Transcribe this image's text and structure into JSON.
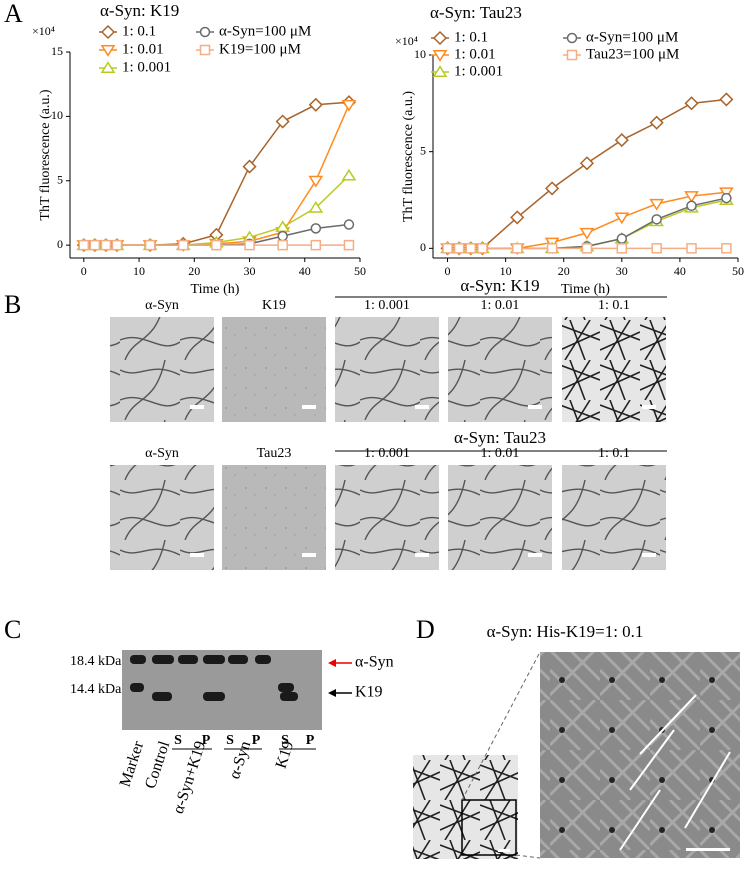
{
  "panel_labels": [
    "A",
    "B",
    "C",
    "D"
  ],
  "chart_data": [
    {
      "type": "line",
      "title": "α-Syn: K19",
      "y_multiplier": "×10⁴",
      "x_label": "Time (h)",
      "y_label": "ThT fluorescence (a.u.)",
      "x": [
        0,
        2,
        4,
        6,
        12,
        18,
        24,
        30,
        36,
        42,
        48
      ],
      "xlim": [
        -2.5,
        50
      ],
      "ylim": [
        -1,
        15
      ],
      "xticks": [
        0,
        10,
        20,
        30,
        40,
        50
      ],
      "yticks": [
        0,
        5,
        10,
        15
      ],
      "series": [
        {
          "name": "1: 0.1",
          "color": "#a8642a",
          "marker": "diamond",
          "values": [
            0,
            0,
            0,
            0,
            0,
            0.1,
            0.8,
            6.1,
            9.6,
            10.9,
            11.1
          ]
        },
        {
          "name": "1: 0.01",
          "color": "#ff8a1f",
          "marker": "triangle-down",
          "values": [
            0,
            0,
            0,
            0,
            0,
            0,
            0.1,
            0.3,
            1.0,
            5.0,
            10.9
          ]
        },
        {
          "name": "1: 0.001",
          "color": "#b9cb22",
          "marker": "triangle-up",
          "values": [
            0,
            0,
            0,
            0,
            0,
            0,
            0.2,
            0.6,
            1.4,
            2.9,
            5.4
          ]
        },
        {
          "name": "α-Syn=100 μM",
          "color": "#6b6b6b",
          "marker": "circle",
          "values": [
            0,
            0,
            0,
            0,
            0,
            0,
            0,
            0.1,
            0.7,
            1.3,
            1.6
          ]
        },
        {
          "name": "K19=100 μM",
          "color": "#f5ae84",
          "marker": "square",
          "values": [
            0,
            0,
            0,
            0,
            0,
            0,
            0,
            0,
            0,
            0,
            0
          ]
        }
      ]
    },
    {
      "type": "line",
      "title": "α-Syn: Tau23",
      "y_multiplier": "×10⁴",
      "x_label": "Time (h)",
      "y_label": "ThT fluorescence (a.u.)",
      "x": [
        0,
        2,
        4,
        6,
        12,
        18,
        24,
        30,
        36,
        42,
        48
      ],
      "xlim": [
        -2.5,
        50
      ],
      "ylim": [
        -0.5,
        10
      ],
      "xticks": [
        0,
        10,
        20,
        30,
        40,
        50
      ],
      "yticks": [
        0,
        5,
        10
      ],
      "series": [
        {
          "name": "1: 0.1",
          "color": "#a8642a",
          "marker": "diamond",
          "values": [
            0,
            0,
            0,
            0,
            1.6,
            3.1,
            4.4,
            5.6,
            6.5,
            7.5,
            7.7
          ]
        },
        {
          "name": "1: 0.01",
          "color": "#ff8a1f",
          "marker": "triangle-down",
          "values": [
            0,
            0,
            0,
            0,
            0,
            0.3,
            0.8,
            1.6,
            2.3,
            2.7,
            2.9
          ]
        },
        {
          "name": "1: 0.001",
          "color": "#b9cb22",
          "marker": "triangle-up",
          "values": [
            0,
            0,
            0,
            0,
            0,
            0,
            0.1,
            0.5,
            1.4,
            2.1,
            2.5
          ]
        },
        {
          "name": "α-Syn=100 μM",
          "color": "#6b6b6b",
          "marker": "circle",
          "values": [
            0,
            0,
            0,
            0,
            0,
            0,
            0.1,
            0.5,
            1.5,
            2.2,
            2.6
          ]
        },
        {
          "name": "Tau23=100 μM",
          "color": "#f5ae84",
          "marker": "square",
          "values": [
            0,
            0,
            0,
            0,
            0,
            0,
            0,
            0,
            0,
            0,
            0
          ]
        }
      ]
    }
  ],
  "micrographs": {
    "row1": {
      "group_title": "α-Syn: K19",
      "labels": [
        "α-Syn",
        "K19",
        "1: 0.001",
        "1: 0.01",
        "1: 0.1"
      ]
    },
    "row2": {
      "group_title": "α-Syn: Tau23",
      "labels": [
        "α-Syn",
        "Tau23",
        "1: 0.001",
        "1: 0.01",
        "1: 0.1"
      ]
    }
  },
  "gel": {
    "markers": [
      "18.4 kDa",
      "14.4 kDa"
    ],
    "bands": [
      "α-Syn",
      "K19"
    ],
    "lane_labels": [
      "Marker",
      "Control",
      "α-Syn+K19",
      "α-Syn",
      "K19"
    ],
    "fraction_labels": [
      "S",
      "P",
      "S",
      "P",
      "S",
      "P"
    ]
  },
  "panel_d": {
    "title": "α-Syn: His-K19=1: 0.1"
  }
}
